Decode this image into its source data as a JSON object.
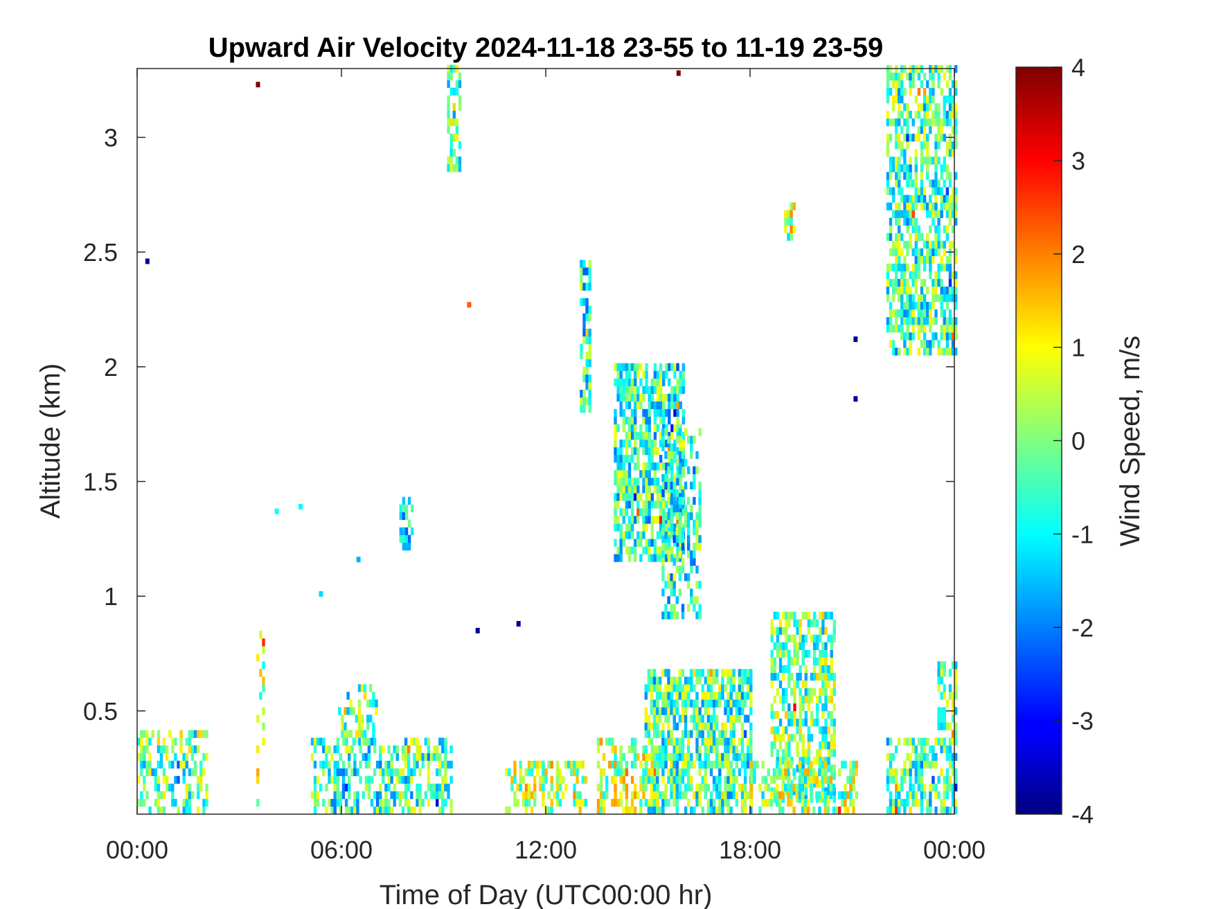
{
  "chart_data": {
    "type": "heatmap",
    "title": "Upward Air Velocity 2024-11-18 23-55 to 11-19 23-59",
    "xlabel": "Time of Day (UTC00:00 hr)",
    "ylabel": "Altitude (km)",
    "xlim_hours": [
      0,
      24
    ],
    "ylim_km": [
      0.05,
      3.3
    ],
    "x_ticks": [
      {
        "hour": 0,
        "label": "00:00"
      },
      {
        "hour": 6,
        "label": "06:00"
      },
      {
        "hour": 12,
        "label": "12:00"
      },
      {
        "hour": 18,
        "label": "18:00"
      },
      {
        "hour": 24,
        "label": "00:00"
      }
    ],
    "y_ticks": [
      {
        "km": 0.5,
        "label": "0.5"
      },
      {
        "km": 1,
        "label": "1"
      },
      {
        "km": 1.5,
        "label": "1.5"
      },
      {
        "km": 2,
        "label": "2"
      },
      {
        "km": 2.5,
        "label": "2.5"
      },
      {
        "km": 3,
        "label": "3"
      }
    ],
    "colorbar": {
      "label": "Wind Speed, m/s",
      "colormap": "jet",
      "range": [
        -4,
        4
      ],
      "ticks": [
        "-4",
        "-3",
        "-2",
        "-1",
        "0",
        "1",
        "2",
        "3",
        "4"
      ]
    },
    "grid": false,
    "regions": [
      {
        "x": [
          0.0,
          2.0
        ],
        "y": [
          0.05,
          0.4
        ],
        "v": -0.2,
        "density": 0.5
      },
      {
        "x": [
          5.1,
          9.2
        ],
        "y": [
          0.05,
          0.35
        ],
        "v": -0.5,
        "density": 0.55
      },
      {
        "x": [
          5.9,
          7.0
        ],
        "y": [
          0.35,
          0.6
        ],
        "v": -0.3,
        "density": 0.35
      },
      {
        "x": [
          10.8,
          13.2
        ],
        "y": [
          0.05,
          0.25
        ],
        "v": 0.4,
        "density": 0.5
      },
      {
        "x": [
          13.5,
          15.3
        ],
        "y": [
          0.05,
          0.35
        ],
        "v": 0.3,
        "density": 0.5
      },
      {
        "x": [
          14.9,
          18.0
        ],
        "y": [
          0.05,
          0.65
        ],
        "v": -0.4,
        "density": 0.7
      },
      {
        "x": [
          18.6,
          20.5
        ],
        "y": [
          0.1,
          0.9
        ],
        "v": -0.2,
        "density": 0.6
      },
      {
        "x": [
          18.0,
          21.1
        ],
        "y": [
          0.05,
          0.25
        ],
        "v": 0.2,
        "density": 0.5
      },
      {
        "x": [
          22.0,
          24.0
        ],
        "y": [
          0.05,
          0.35
        ],
        "v": -0.3,
        "density": 0.6
      },
      {
        "x": [
          23.5,
          24.0
        ],
        "y": [
          0.35,
          0.7
        ],
        "v": -0.2,
        "density": 0.5
      },
      {
        "x": [
          14.0,
          16.0
        ],
        "y": [
          1.15,
          2.0
        ],
        "v": -0.6,
        "density": 0.75
      },
      {
        "x": [
          15.4,
          16.5
        ],
        "y": [
          0.9,
          1.7
        ],
        "v": -0.8,
        "density": 0.45
      },
      {
        "x": [
          13.0,
          13.3
        ],
        "y": [
          1.8,
          2.45
        ],
        "v": -0.7,
        "density": 0.6
      },
      {
        "x": [
          22.0,
          24.0
        ],
        "y": [
          2.05,
          3.3
        ],
        "v": -0.4,
        "density": 0.6
      },
      {
        "x": [
          9.1,
          9.5
        ],
        "y": [
          2.85,
          3.3
        ],
        "v": -0.2,
        "density": 0.6
      },
      {
        "x": [
          7.7,
          8.1
        ],
        "y": [
          1.2,
          1.4
        ],
        "v": -0.7,
        "density": 0.6
      },
      {
        "x": [
          19.0,
          19.3
        ],
        "y": [
          2.55,
          2.7
        ],
        "v": 0.4,
        "density": 0.6
      },
      {
        "x": [
          3.5,
          3.7
        ],
        "y": [
          0.05,
          0.85
        ],
        "v": 0.3,
        "density": 0.3
      }
    ],
    "isolated_points": [
      {
        "hour": 3.55,
        "km": 3.23,
        "v": 4.0
      },
      {
        "hour": 15.9,
        "km": 3.28,
        "v": 4.0
      },
      {
        "hour": 0.3,
        "km": 2.46,
        "v": -3.8
      },
      {
        "hour": 9.75,
        "km": 2.27,
        "v": 2.3
      },
      {
        "hour": 21.1,
        "km": 2.12,
        "v": -3.8
      },
      {
        "hour": 21.1,
        "km": 1.86,
        "v": -3.8
      },
      {
        "hour": 10.0,
        "km": 0.85,
        "v": -3.8
      },
      {
        "hour": 11.2,
        "km": 0.88,
        "v": -3.8
      },
      {
        "hour": 4.1,
        "km": 1.37,
        "v": -1.0
      },
      {
        "hour": 4.8,
        "km": 1.39,
        "v": -1.0
      },
      {
        "hour": 6.5,
        "km": 1.16,
        "v": -1.6
      },
      {
        "hour": 5.4,
        "km": 1.01,
        "v": -1.3
      }
    ]
  }
}
